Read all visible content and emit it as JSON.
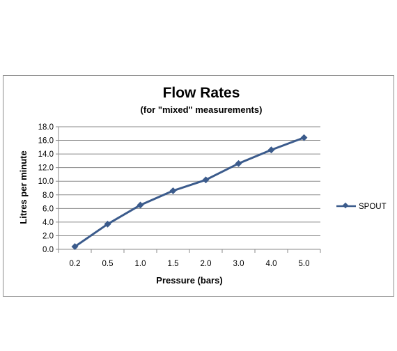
{
  "chart_data": {
    "type": "line",
    "title": "Flow Rates",
    "subtitle": "(for \"mixed\"  measurements)",
    "xlabel": "Pressure (bars)",
    "ylabel": "Litres per minute",
    "categories": [
      "0.2",
      "0.5",
      "1.0",
      "1.5",
      "2.0",
      "3.0",
      "4.0",
      "5.0"
    ],
    "y_ticks": [
      "0.0",
      "2.0",
      "4.0",
      "6.0",
      "8.0",
      "10.0",
      "12.0",
      "14.0",
      "16.0",
      "18.0"
    ],
    "ylim": [
      0,
      18
    ],
    "grid": true,
    "legend_position": "right",
    "series": [
      {
        "name": "SPOUT",
        "values": [
          0.4,
          3.7,
          6.5,
          8.6,
          10.2,
          12.6,
          14.6,
          16.4
        ],
        "color": "#3b5b8c"
      }
    ]
  }
}
